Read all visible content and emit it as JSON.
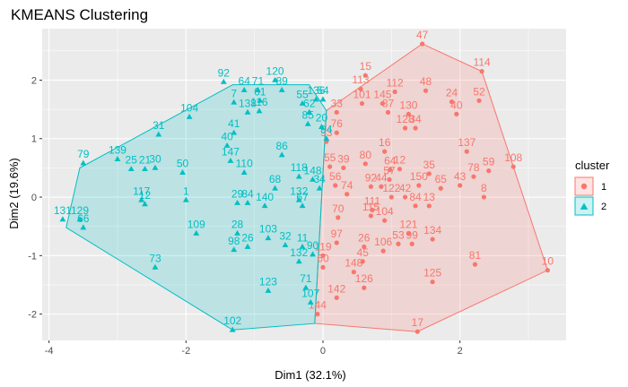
{
  "chart_data": {
    "type": "scatter",
    "title": "KMEANS Clustering",
    "xlabel": "Dim1 (32.1%)",
    "ylabel": "Dim2 (19.6%)",
    "xlim": [
      -4.1,
      3.55
    ],
    "ylim": [
      -2.45,
      2.88
    ],
    "xticks": [
      -4,
      -2,
      0,
      2
    ],
    "yticks": [
      -2,
      -1,
      0,
      1,
      2
    ],
    "grid": true,
    "legend": {
      "title": "cluster",
      "position": "right"
    },
    "series": [
      {
        "name": "1",
        "color": "#F8766D",
        "fill": "#F8766D",
        "marker": "circle",
        "hull": [
          [
            1.45,
            2.62
          ],
          [
            2.32,
            2.15
          ],
          [
            3.28,
            -1.25
          ],
          [
            1.38,
            -2.3
          ],
          [
            -0.12,
            -2.16
          ],
          [
            0.05,
            1.48
          ]
        ],
        "points": [
          {
            "label": "47",
            "x": 1.45,
            "y": 2.62
          },
          {
            "label": "114",
            "x": 2.32,
            "y": 2.15
          },
          {
            "label": "15",
            "x": 0.62,
            "y": 2.08
          },
          {
            "label": "113",
            "x": 0.55,
            "y": 1.85
          },
          {
            "label": "112",
            "x": 1.05,
            "y": 1.8
          },
          {
            "label": "48",
            "x": 1.5,
            "y": 1.82
          },
          {
            "label": "24",
            "x": 1.88,
            "y": 1.63
          },
          {
            "label": "52",
            "x": 2.28,
            "y": 1.65
          },
          {
            "label": "101",
            "x": 0.57,
            "y": 1.6
          },
          {
            "label": "145",
            "x": 0.87,
            "y": 1.6
          },
          {
            "label": "87",
            "x": 0.95,
            "y": 1.45
          },
          {
            "label": "130",
            "x": 1.25,
            "y": 1.42
          },
          {
            "label": "40",
            "x": 1.95,
            "y": 1.42
          },
          {
            "label": "33",
            "x": 0.2,
            "y": 1.45
          },
          {
            "label": "76",
            "x": 0.2,
            "y": 1.1
          },
          {
            "label": "128",
            "x": 1.2,
            "y": 1.18
          },
          {
            "label": "34",
            "x": 1.35,
            "y": 1.18
          },
          {
            "label": "16",
            "x": 0.9,
            "y": 0.78
          },
          {
            "label": "137",
            "x": 2.1,
            "y": 0.78
          },
          {
            "label": "93",
            "x": 0.05,
            "y": 0.95
          },
          {
            "label": "108",
            "x": 2.78,
            "y": 0.52
          },
          {
            "label": "59",
            "x": 2.42,
            "y": 0.45
          },
          {
            "label": "78",
            "x": 2.2,
            "y": 0.35
          },
          {
            "label": "43",
            "x": 2.0,
            "y": 0.2
          },
          {
            "label": "65",
            "x": 1.72,
            "y": 0.15
          },
          {
            "label": "150",
            "x": 1.4,
            "y": 0.2
          },
          {
            "label": "35",
            "x": 1.55,
            "y": 0.4
          },
          {
            "label": "8",
            "x": 2.35,
            "y": 0.0
          },
          {
            "label": "64",
            "x": 0.98,
            "y": 0.47
          },
          {
            "label": "80",
            "x": 0.62,
            "y": 0.57
          },
          {
            "label": "55",
            "x": 0.1,
            "y": 0.52
          },
          {
            "label": "39",
            "x": 0.3,
            "y": 0.5
          },
          {
            "label": "12",
            "x": 1.12,
            "y": 0.48
          },
          {
            "label": "57",
            "x": 0.97,
            "y": 0.3
          },
          {
            "label": "44",
            "x": 0.85,
            "y": 0.18
          },
          {
            "label": "92",
            "x": 0.7,
            "y": 0.18
          },
          {
            "label": "74",
            "x": 0.35,
            "y": 0.05
          },
          {
            "label": "122",
            "x": 1.0,
            "y": 0.0
          },
          {
            "label": "42",
            "x": 1.2,
            "y": 0.0
          },
          {
            "label": "84",
            "x": 1.35,
            "y": -0.15
          },
          {
            "label": "13",
            "x": 1.55,
            "y": -0.15
          },
          {
            "label": "70",
            "x": 0.22,
            "y": -0.35
          },
          {
            "label": "111",
            "x": 0.72,
            "y": -0.22
          },
          {
            "label": "115",
            "x": 0.7,
            "y": -0.32
          },
          {
            "label": "104",
            "x": 0.9,
            "y": -0.4
          },
          {
            "label": "121",
            "x": 1.25,
            "y": -0.62
          },
          {
            "label": "134",
            "x": 1.6,
            "y": -0.72
          },
          {
            "label": "97",
            "x": 0.2,
            "y": -0.78
          },
          {
            "label": "53",
            "x": 1.1,
            "y": -0.8
          },
          {
            "label": "99",
            "x": 1.3,
            "y": -0.8
          },
          {
            "label": "106",
            "x": 0.88,
            "y": -0.92
          },
          {
            "label": "26",
            "x": 0.6,
            "y": -0.85
          },
          {
            "label": "119",
            "x": 0.0,
            "y": -1.0
          },
          {
            "label": "60",
            "x": 0.0,
            "y": -1.2
          },
          {
            "label": "45",
            "x": 0.58,
            "y": -1.1
          },
          {
            "label": "148",
            "x": 0.45,
            "y": -1.28
          },
          {
            "label": "126",
            "x": 0.6,
            "y": -1.55
          },
          {
            "label": "125",
            "x": 1.6,
            "y": -1.45
          },
          {
            "label": "81",
            "x": 2.22,
            "y": -1.15
          },
          {
            "label": "142",
            "x": 0.2,
            "y": -1.72
          },
          {
            "label": "17",
            "x": 1.38,
            "y": -2.3
          },
          {
            "label": "10",
            "x": 3.28,
            "y": -1.25
          },
          {
            "label": "144",
            "x": -0.08,
            "y": -2.0
          },
          {
            "label": "56",
            "x": 0.18,
            "y": 0.2
          }
        ]
      },
      {
        "name": "2",
        "color": "#00BFC4",
        "fill": "#00BFC4",
        "marker": "triangle",
        "hull": [
          [
            -1.32,
            1.92
          ],
          [
            -0.2,
            1.92
          ],
          [
            0.05,
            1.48
          ],
          [
            -0.12,
            -2.16
          ],
          [
            -1.32,
            -2.27
          ],
          [
            -3.75,
            -0.52
          ],
          [
            -3.55,
            0.5
          ]
        ],
        "points": [
          {
            "label": "92",
            "x": -1.45,
            "y": 1.97
          },
          {
            "label": "120",
            "x": -0.7,
            "y": 2.0
          },
          {
            "label": "64",
            "x": -1.15,
            "y": 1.83
          },
          {
            "label": "71",
            "x": -0.95,
            "y": 1.83
          },
          {
            "label": "89",
            "x": -0.6,
            "y": 1.83
          },
          {
            "label": "7",
            "x": -1.3,
            "y": 1.62
          },
          {
            "label": "61",
            "x": -0.92,
            "y": 1.65
          },
          {
            "label": "55",
            "x": -0.3,
            "y": 1.6
          },
          {
            "label": "136",
            "x": -0.1,
            "y": 1.67
          },
          {
            "label": "54",
            "x": 0.0,
            "y": 1.67
          },
          {
            "label": "138",
            "x": -1.1,
            "y": 1.45
          },
          {
            "label": "116",
            "x": -0.93,
            "y": 1.47
          },
          {
            "label": "62",
            "x": -0.2,
            "y": 1.45
          },
          {
            "label": "104",
            "x": -1.95,
            "y": 1.37
          },
          {
            "label": "85",
            "x": -0.22,
            "y": 1.25
          },
          {
            "label": "41",
            "x": -1.3,
            "y": 1.1
          },
          {
            "label": "31",
            "x": -2.4,
            "y": 1.07
          },
          {
            "label": "40",
            "x": -1.4,
            "y": 0.88
          },
          {
            "label": "79",
            "x": -3.5,
            "y": 0.58
          },
          {
            "label": "139",
            "x": -3.0,
            "y": 0.65
          },
          {
            "label": "86",
            "x": -0.6,
            "y": 0.72
          },
          {
            "label": "147",
            "x": -1.35,
            "y": 0.62
          },
          {
            "label": "25",
            "x": -2.8,
            "y": 0.48
          },
          {
            "label": "21",
            "x": -2.6,
            "y": 0.48
          },
          {
            "label": "30",
            "x": -2.45,
            "y": 0.5
          },
          {
            "label": "50",
            "x": -2.05,
            "y": 0.42
          },
          {
            "label": "118",
            "x": -0.35,
            "y": 0.35
          },
          {
            "label": "148",
            "x": -0.15,
            "y": 0.3
          },
          {
            "label": "110",
            "x": -1.15,
            "y": 0.42
          },
          {
            "label": "68",
            "x": -0.7,
            "y": 0.15
          },
          {
            "label": "34",
            "x": -0.05,
            "y": 0.15
          },
          {
            "label": "117",
            "x": -2.65,
            "y": -0.05
          },
          {
            "label": "12",
            "x": -2.6,
            "y": -0.12
          },
          {
            "label": "1",
            "x": -2.0,
            "y": -0.05
          },
          {
            "label": "132",
            "x": -0.35,
            "y": -0.05
          },
          {
            "label": "29",
            "x": -1.25,
            "y": -0.1
          },
          {
            "label": "84",
            "x": -1.1,
            "y": -0.1
          },
          {
            "label": "140",
            "x": -0.85,
            "y": -0.15
          },
          {
            "label": "67",
            "x": -0.3,
            "y": -0.15
          },
          {
            "label": "131",
            "x": -3.8,
            "y": -0.38
          },
          {
            "label": "129",
            "x": -3.55,
            "y": -0.38
          },
          {
            "label": "66",
            "x": -3.5,
            "y": -0.52
          },
          {
            "label": "109",
            "x": -1.85,
            "y": -0.62
          },
          {
            "label": "28",
            "x": -1.25,
            "y": -0.62
          },
          {
            "label": "103",
            "x": -0.8,
            "y": -0.7
          },
          {
            "label": "32",
            "x": -0.55,
            "y": -0.82
          },
          {
            "label": "11",
            "x": -0.3,
            "y": -0.85
          },
          {
            "label": "98",
            "x": -1.3,
            "y": -0.9
          },
          {
            "label": "26",
            "x": -1.1,
            "y": -0.85
          },
          {
            "label": "90",
            "x": -0.15,
            "y": -0.98
          },
          {
            "label": "132b",
            "text": "132",
            "x": -0.35,
            "y": -1.1
          },
          {
            "label": "73",
            "x": -2.45,
            "y": -1.2
          },
          {
            "label": "71b",
            "text": "71",
            "x": -0.25,
            "y": -1.55
          },
          {
            "label": "123",
            "x": -0.8,
            "y": -1.6
          },
          {
            "label": "107",
            "x": -0.18,
            "y": -1.8
          },
          {
            "label": "102",
            "x": -1.32,
            "y": -2.27
          },
          {
            "label": "20",
            "x": -0.02,
            "y": 1.2
          },
          {
            "label": "94",
            "x": 0.05,
            "y": 1.0
          }
        ]
      }
    ]
  }
}
